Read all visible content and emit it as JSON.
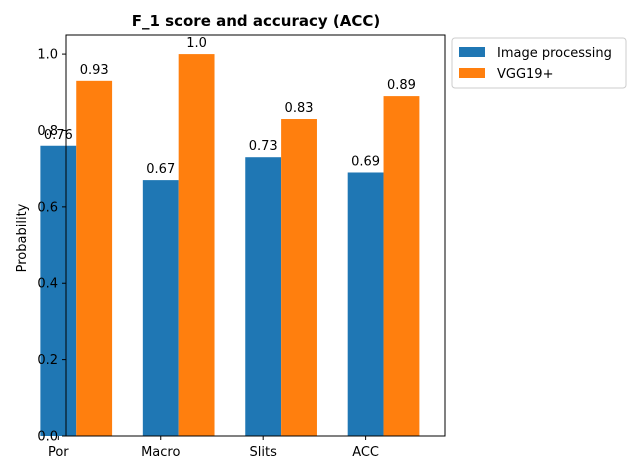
{
  "chart_data": {
    "type": "bar",
    "title": "F_1 score and accuracy (ACC)",
    "xlabel": "",
    "ylabel": "Probability",
    "categories": [
      "Por",
      "Macro",
      "Slits",
      "ACC"
    ],
    "series": [
      {
        "name": "Image processing",
        "values": [
          0.76,
          0.67,
          0.73,
          0.69
        ],
        "labels": [
          "0.76",
          "0.67",
          "0.73",
          "0.69"
        ],
        "color": "#1f77b4"
      },
      {
        "name": "VGG19+",
        "values": [
          0.93,
          1.0,
          0.83,
          0.89
        ],
        "labels": [
          "0.93",
          "1.0",
          "0.83",
          "0.89"
        ],
        "color": "#ff7f0e"
      }
    ],
    "ylim": [
      0,
      1.05
    ],
    "yticks": [
      "0.0",
      "0.2",
      "0.4",
      "0.6",
      "0.8",
      "1.0"
    ],
    "grid": false,
    "legend_position": "outside upper-right"
  }
}
